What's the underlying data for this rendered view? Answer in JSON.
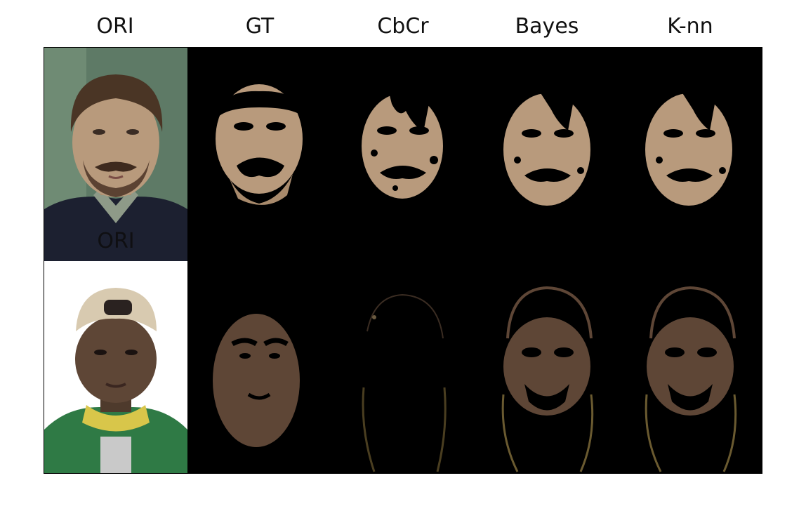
{
  "columns": [
    {
      "id": "ori",
      "title": "ORI"
    },
    {
      "id": "gt",
      "title": "GT"
    },
    {
      "id": "cbcr",
      "title": "CbCr"
    },
    {
      "id": "bayes",
      "title": "Bayes"
    },
    {
      "id": "knn",
      "title": "K-nn"
    }
  ],
  "rows": [
    {
      "id": "row1",
      "overlay_label": "ORI",
      "skin_color": "#b89a7c",
      "hair_color": "#4a3525",
      "background_color": "#5e7a66",
      "clothing_color": "#1c2030"
    },
    {
      "id": "row2",
      "overlay_label": "",
      "skin_color": "#5e4636",
      "hair_color": "#1a1210",
      "background_color": "#ffffff",
      "clothing_color": "#2f7a45",
      "cap_color": "#d8cab0"
    }
  ],
  "colors": {
    "mask_background": "#000000",
    "frame_border": "#000000",
    "title_text": "#111111"
  }
}
